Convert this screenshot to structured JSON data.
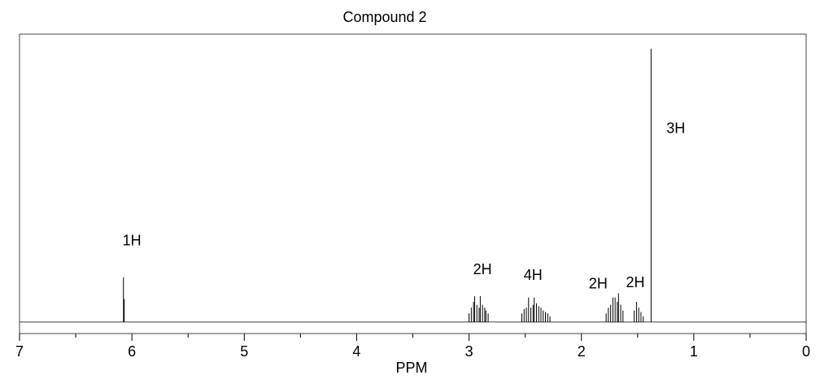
{
  "chart_data": {
    "type": "stem",
    "title": "Compound 2",
    "x_label": "PPM",
    "x": [
      6.075,
      6.068,
      3.0,
      2.98,
      2.96,
      2.95,
      2.93,
      2.91,
      2.9,
      2.88,
      2.86,
      2.85,
      2.83,
      2.53,
      2.51,
      2.49,
      2.47,
      2.45,
      2.43,
      2.42,
      2.4,
      2.38,
      2.36,
      2.34,
      2.32,
      2.3,
      2.28,
      1.78,
      1.76,
      1.74,
      1.72,
      1.7,
      1.68,
      1.67,
      1.65,
      1.63,
      1.53,
      1.51,
      1.49,
      1.47,
      1.45,
      1.38
    ],
    "values": [
      15.5,
      8,
      3,
      5,
      7,
      9,
      6,
      5,
      9,
      6,
      5,
      4,
      3,
      3,
      4.5,
      5,
      8.5,
      5,
      6,
      8.5,
      6.5,
      5.5,
      5,
      4,
      3.5,
      3,
      2,
      3,
      5,
      6,
      8.5,
      8.5,
      7,
      10,
      6,
      4,
      4,
      7,
      5,
      3.5,
      2,
      95
    ],
    "color": "#000000",
    "xlim": [
      7,
      0
    ],
    "xticks": [
      7,
      6,
      5,
      4,
      3,
      2,
      1,
      0
    ],
    "minor_xticks": [
      6.5,
      5.5,
      4.5,
      3.5,
      2.5,
      1.5,
      0.5
    ],
    "ylim": [
      -4,
      100
    ],
    "annotations": [
      {
        "text": "1H",
        "x": 6.0,
        "y": 28
      },
      {
        "text": "2H",
        "x": 2.88,
        "y": 18
      },
      {
        "text": "4H",
        "x": 2.43,
        "y": 16
      },
      {
        "text": "2H",
        "x": 1.85,
        "y": 13
      },
      {
        "text": "2H",
        "x": 1.52,
        "y": 13.5
      },
      {
        "text": "3H",
        "x": 1.16,
        "y": 67
      }
    ]
  }
}
